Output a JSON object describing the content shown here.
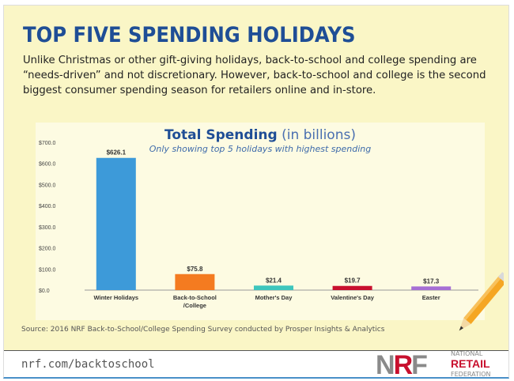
{
  "header": {
    "title": "TOP FIVE SPENDING HOLIDAYS",
    "intro": "Unlike Christmas or other gift-giving holidays, back-to-school and college spending are “needs-driven” and not discretionary. However, back-to-school and college is the second biggest consumer spending season for retailers online and in-store."
  },
  "chart_data": {
    "type": "bar",
    "title": "Total Spending",
    "title_suffix": "(in billions)",
    "subtitle": "Only showing top 5 holidays with highest spending",
    "categories": [
      "Winter Holidays",
      "Back-to-School\n/College",
      "Mother's Day",
      "Valentine's Day",
      "Easter"
    ],
    "values": [
      626.1,
      75.8,
      21.4,
      19.7,
      17.3
    ],
    "labels": [
      "$626.1",
      "$75.8",
      "$21.4",
      "$19.7",
      "$17.3"
    ],
    "colors": [
      "#3d9ad9",
      "#f47b20",
      "#3ec6bd",
      "#c8102e",
      "#a66fd4"
    ],
    "yticks": [
      "$0.0",
      "$100.0",
      "$200.0",
      "$300.0",
      "$400.0",
      "$500.0",
      "$600.0",
      "$700.0"
    ],
    "ylim": [
      0,
      700
    ],
    "xlabel": "",
    "ylabel": ""
  },
  "footer": {
    "source": "Source: 2016 NRF Back-to-School/College Spending Survey conducted by Prosper Insights & Analytics",
    "url": "nrf.com/backtoschool",
    "logo": {
      "mark": "NRF",
      "line1": "NATIONAL",
      "line2": "RETAIL",
      "line3": "FEDERATION"
    }
  }
}
